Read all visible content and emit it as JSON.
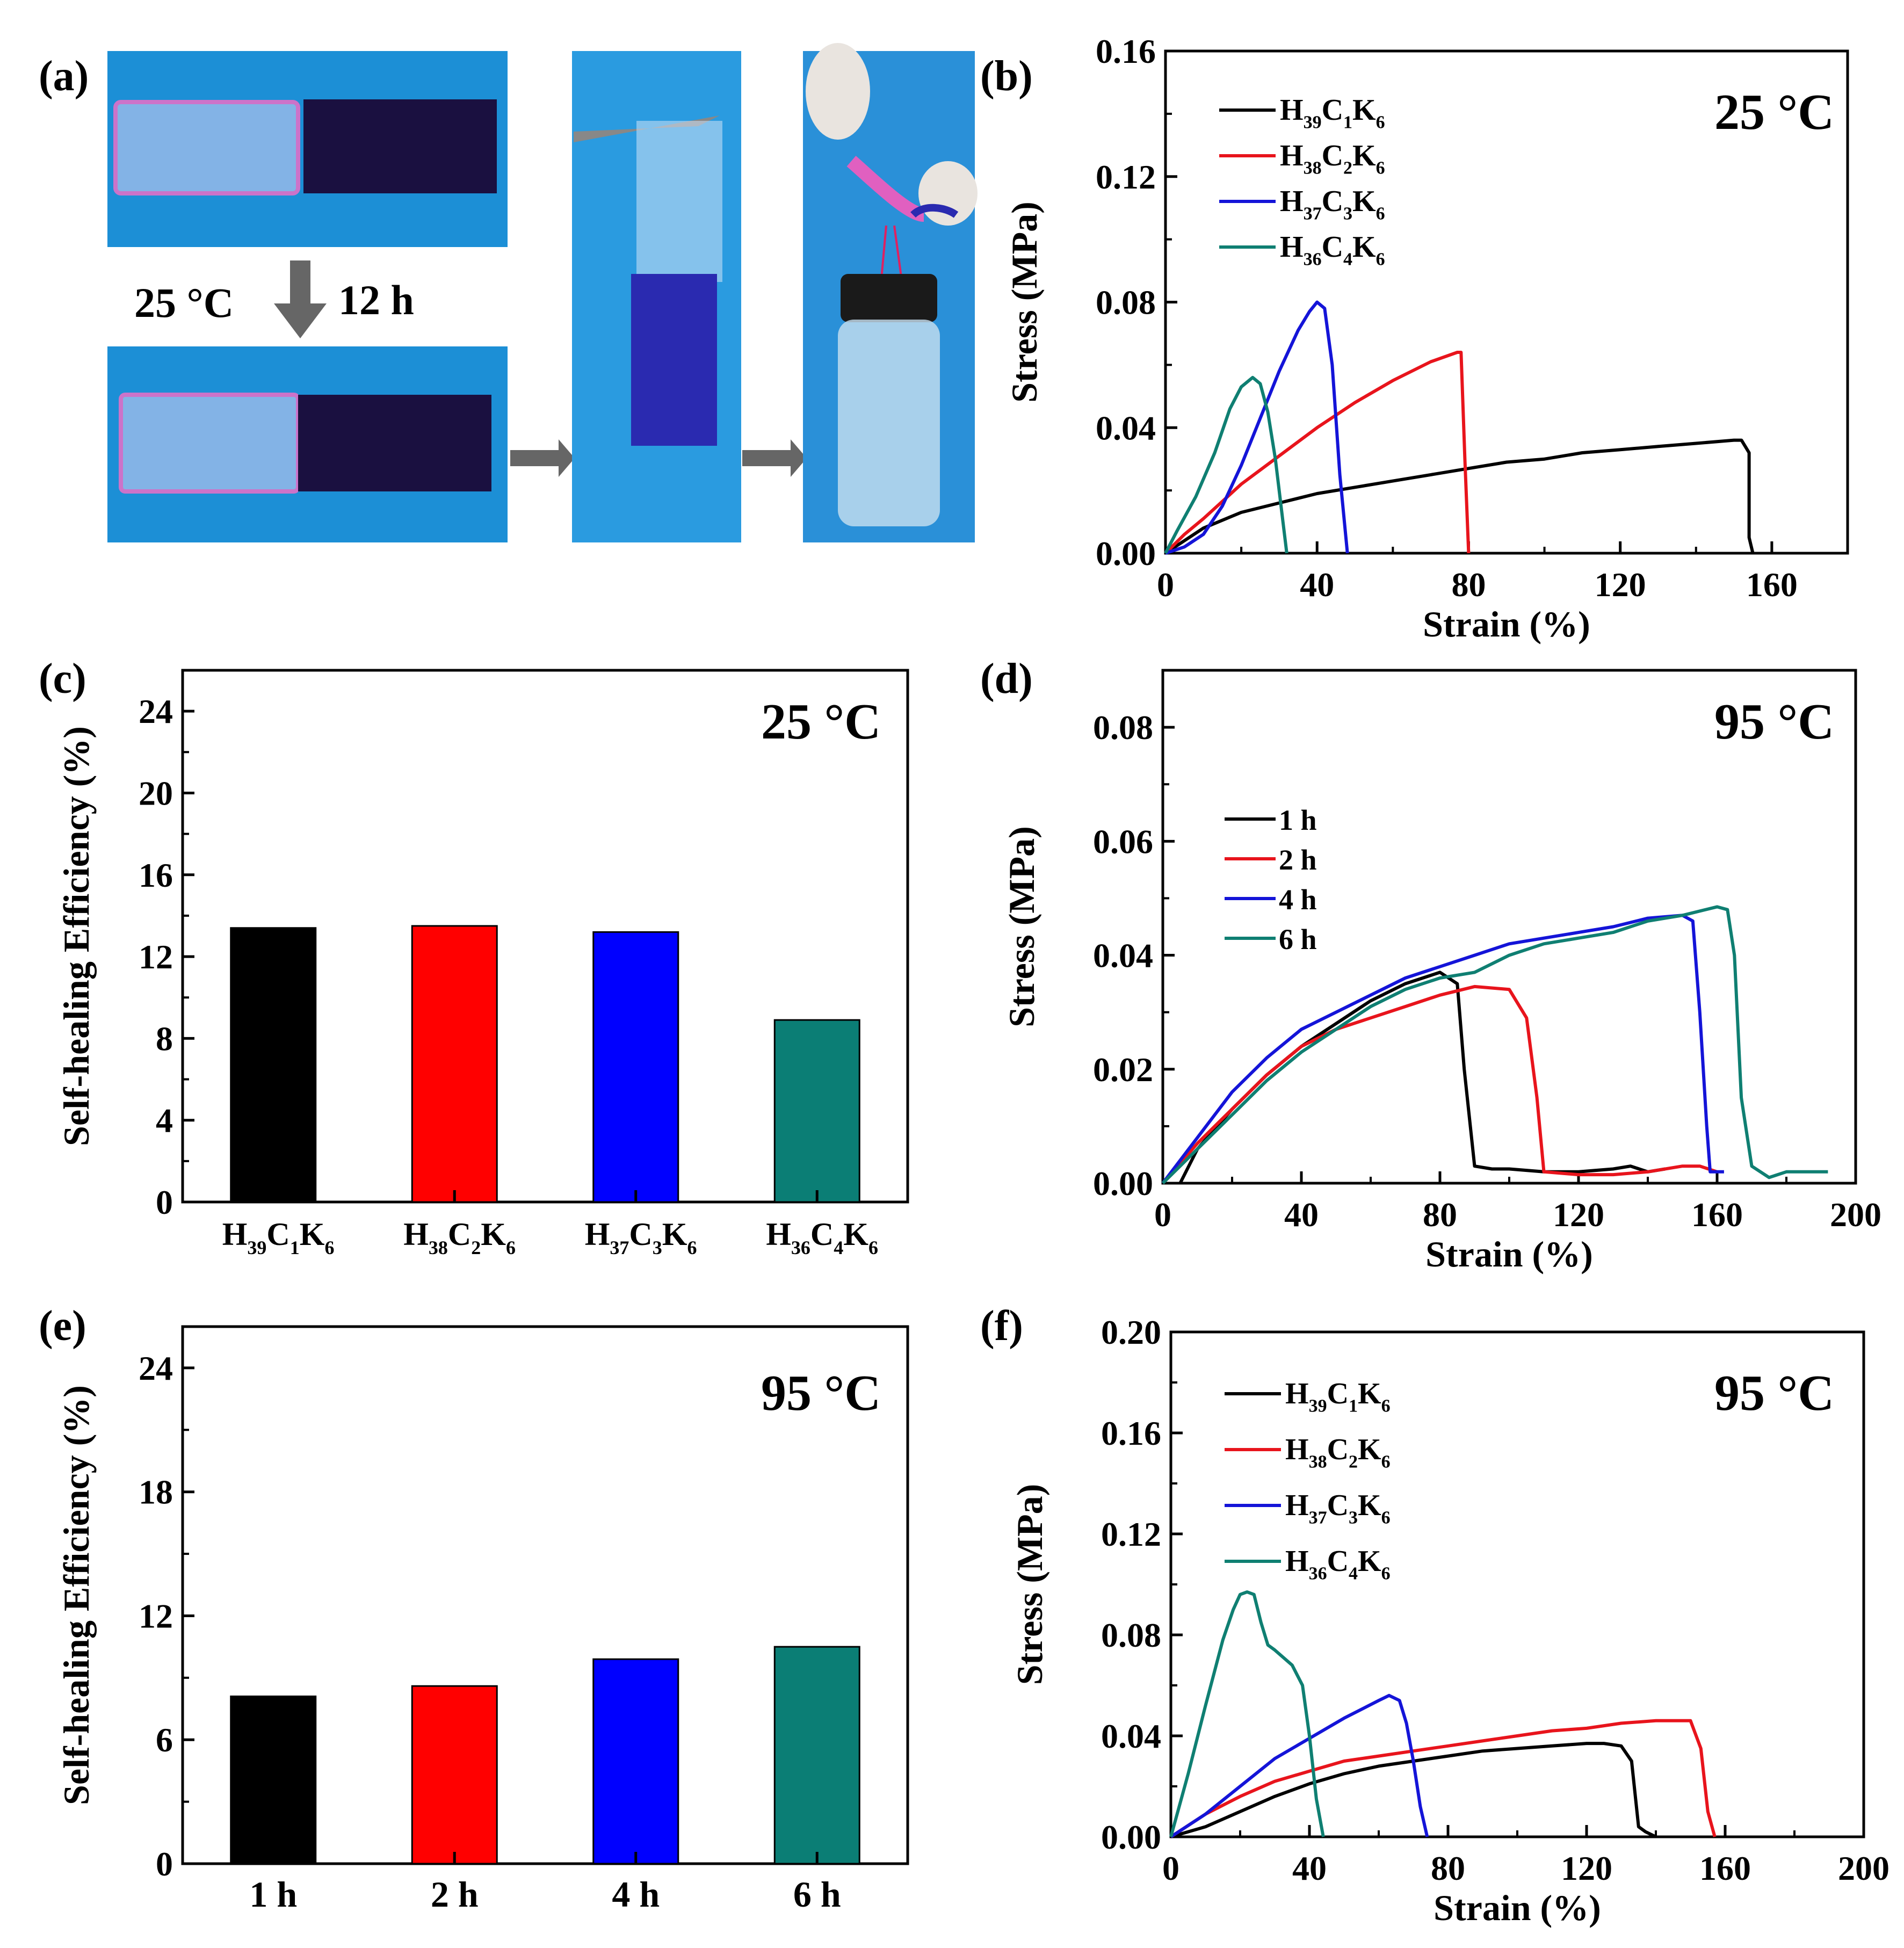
{
  "figure": {
    "panel_labels": [
      "(a)",
      "(b)",
      "(c)",
      "(d)",
      "(e)",
      "(f)"
    ]
  },
  "panel_a": {
    "condition_temp": "25 °C",
    "condition_time": "12 h",
    "colors": {
      "background_blue": "#1c8fd6",
      "gel_pink": "#e070c8",
      "gel_dark": "#1a1040",
      "gel_blue": "#2a2ab0",
      "arrow_gray": "#666666"
    }
  },
  "legend_series": [
    {
      "name": "H39C1K6",
      "base": [
        "H",
        "C",
        "K"
      ],
      "subs": [
        "39",
        "1",
        "6"
      ],
      "color": "#000000"
    },
    {
      "name": "H38C2K6",
      "base": [
        "H",
        "C",
        "K"
      ],
      "subs": [
        "38",
        "2",
        "6"
      ],
      "color": "#e8141c"
    },
    {
      "name": "H37C3K6",
      "base": [
        "H",
        "C",
        "K"
      ],
      "subs": [
        "37",
        "3",
        "6"
      ],
      "color": "#1414d8"
    },
    {
      "name": "H36C4K6",
      "base": [
        "H",
        "C",
        "K"
      ],
      "subs": [
        "36",
        "4",
        "6"
      ],
      "color": "#0f7f72"
    }
  ],
  "chart_data": [
    {
      "id": "b",
      "type": "line",
      "annotation": "25 °C",
      "xlabel": "Strain (%)",
      "ylabel": "Stress (MPa)",
      "xlim": [
        0,
        180
      ],
      "ylim": [
        0,
        0.16
      ],
      "xticks": [
        "0",
        "40",
        "80",
        "120",
        "160"
      ],
      "yticks": [
        "0.00",
        "0.04",
        "0.08",
        "0.12",
        "0.16"
      ],
      "legend_position": "top-left",
      "series": [
        {
          "name": "H39C1K6",
          "color": "#000000",
          "x": [
            0,
            5,
            10,
            20,
            30,
            40,
            50,
            60,
            70,
            80,
            90,
            100,
            110,
            120,
            130,
            140,
            150,
            152,
            154,
            154,
            155
          ],
          "y": [
            0,
            0.004,
            0.008,
            0.013,
            0.016,
            0.019,
            0.021,
            0.023,
            0.025,
            0.027,
            0.029,
            0.03,
            0.032,
            0.033,
            0.034,
            0.035,
            0.036,
            0.036,
            0.032,
            0.005,
            0
          ]
        },
        {
          "name": "H38C2K6",
          "color": "#e8141c",
          "x": [
            0,
            5,
            10,
            20,
            30,
            40,
            50,
            60,
            70,
            77,
            78,
            79,
            80
          ],
          "y": [
            0,
            0.006,
            0.011,
            0.022,
            0.031,
            0.04,
            0.048,
            0.055,
            0.061,
            0.064,
            0.064,
            0.03,
            0
          ]
        },
        {
          "name": "H37C3K6",
          "color": "#1414d8",
          "x": [
            0,
            5,
            10,
            15,
            20,
            25,
            30,
            35,
            38,
            40,
            42,
            44,
            46,
            48
          ],
          "y": [
            0,
            0.002,
            0.006,
            0.015,
            0.028,
            0.043,
            0.058,
            0.071,
            0.077,
            0.08,
            0.078,
            0.06,
            0.025,
            0
          ]
        },
        {
          "name": "H36C4K6",
          "color": "#0f7f72",
          "x": [
            0,
            3,
            8,
            13,
            17,
            20,
            23,
            25,
            27,
            29,
            31,
            32
          ],
          "y": [
            0,
            0.007,
            0.018,
            0.032,
            0.046,
            0.053,
            0.056,
            0.054,
            0.045,
            0.03,
            0.01,
            0
          ]
        }
      ]
    },
    {
      "id": "c",
      "type": "bar",
      "annotation": "25 °C",
      "xlabel": "",
      "ylabel": "Self-healing Efficiency (%)",
      "ylim": [
        0,
        26
      ],
      "yticks": [
        "0",
        "4",
        "8",
        "12",
        "16",
        "20",
        "24"
      ],
      "categories": [
        "H39C1K6",
        "H38C2K6",
        "H37C3K6",
        "H36C4K6"
      ],
      "values": [
        13.4,
        13.5,
        13.2,
        8.9
      ],
      "colors": [
        "#000000",
        "#ff0000",
        "#0000ff",
        "#0b7e75"
      ]
    },
    {
      "id": "d",
      "type": "line",
      "annotation": "95 °C",
      "xlabel": "Strain (%)",
      "ylabel": "Stress (MPa)",
      "xlim": [
        0,
        200
      ],
      "ylim": [
        0,
        0.09
      ],
      "xticks": [
        "0",
        "40",
        "80",
        "120",
        "160",
        "200"
      ],
      "yticks": [
        "0.00",
        "0.02",
        "0.04",
        "0.06",
        "0.08"
      ],
      "legend_position": "left",
      "legend_labels": [
        "1 h",
        "2 h",
        "4 h",
        "6 h"
      ],
      "series": [
        {
          "name": "1 h",
          "color": "#000000",
          "x": [
            5,
            10,
            20,
            30,
            40,
            50,
            60,
            70,
            80,
            85,
            87,
            90,
            95,
            100,
            110,
            120,
            130,
            135,
            140,
            145
          ],
          "y": [
            0,
            0.006,
            0.013,
            0.019,
            0.024,
            0.028,
            0.032,
            0.035,
            0.037,
            0.035,
            0.02,
            0.003,
            0.0025,
            0.0025,
            0.002,
            0.002,
            0.0025,
            0.003,
            0.002,
            0.0025
          ]
        },
        {
          "name": "2 h",
          "color": "#e8141c",
          "x": [
            0,
            10,
            20,
            30,
            40,
            50,
            60,
            70,
            80,
            90,
            100,
            105,
            108,
            110,
            120,
            130,
            140,
            150,
            155,
            160
          ],
          "y": [
            0,
            0.007,
            0.013,
            0.019,
            0.024,
            0.027,
            0.029,
            0.031,
            0.033,
            0.0345,
            0.034,
            0.029,
            0.015,
            0.002,
            0.0015,
            0.0015,
            0.002,
            0.003,
            0.003,
            0.002
          ]
        },
        {
          "name": "4 h",
          "color": "#1414d8",
          "x": [
            0,
            10,
            20,
            30,
            40,
            50,
            60,
            70,
            80,
            90,
            100,
            110,
            120,
            130,
            140,
            150,
            153,
            155,
            157,
            158,
            162
          ],
          "y": [
            0,
            0.008,
            0.016,
            0.022,
            0.027,
            0.03,
            0.033,
            0.036,
            0.038,
            0.04,
            0.042,
            0.043,
            0.044,
            0.045,
            0.0465,
            0.047,
            0.046,
            0.03,
            0.01,
            0.002,
            0.002
          ]
        },
        {
          "name": "6 h",
          "color": "#0f7f72",
          "x": [
            0,
            10,
            20,
            30,
            40,
            50,
            60,
            70,
            80,
            90,
            100,
            110,
            120,
            130,
            140,
            150,
            160,
            163,
            165,
            167,
            170,
            175,
            180,
            185,
            192
          ],
          "y": [
            0,
            0.006,
            0.012,
            0.018,
            0.023,
            0.027,
            0.031,
            0.034,
            0.036,
            0.037,
            0.04,
            0.042,
            0.043,
            0.044,
            0.046,
            0.047,
            0.0485,
            0.048,
            0.04,
            0.015,
            0.003,
            0.001,
            0.002,
            0.002,
            0.002
          ]
        }
      ]
    },
    {
      "id": "e",
      "type": "bar",
      "annotation": "95 °C",
      "xlabel": "",
      "ylabel": "Self-healing Efficiency (%)",
      "ylim": [
        0,
        26
      ],
      "yticks": [
        "0",
        "6",
        "12",
        "18",
        "24"
      ],
      "categories": [
        "1 h",
        "2 h",
        "4 h",
        "6 h"
      ],
      "values": [
        8.1,
        8.6,
        9.9,
        10.5
      ],
      "colors": [
        "#000000",
        "#ff0000",
        "#0000ff",
        "#0b7e75"
      ]
    },
    {
      "id": "f",
      "type": "line",
      "annotation": "95 °C",
      "xlabel": "Strain (%)",
      "ylabel": "Stress (MPa)",
      "xlim": [
        0,
        200
      ],
      "ylim": [
        0,
        0.2
      ],
      "xticks": [
        "0",
        "40",
        "80",
        "120",
        "160",
        "200"
      ],
      "yticks": [
        "0.00",
        "0.04",
        "0.08",
        "0.12",
        "0.16",
        "0.20"
      ],
      "legend_position": "top-left",
      "series": [
        {
          "name": "H39C1K6",
          "color": "#000000",
          "x": [
            0,
            10,
            20,
            30,
            40,
            50,
            60,
            70,
            80,
            90,
            100,
            110,
            120,
            125,
            130,
            133,
            135,
            137,
            140
          ],
          "y": [
            0,
            0.004,
            0.01,
            0.016,
            0.021,
            0.025,
            0.028,
            0.03,
            0.032,
            0.034,
            0.035,
            0.036,
            0.037,
            0.037,
            0.036,
            0.03,
            0.004,
            0.002,
            0
          ]
        },
        {
          "name": "H38C2K6",
          "color": "#e8141c",
          "x": [
            0,
            10,
            20,
            30,
            40,
            50,
            60,
            70,
            80,
            90,
            100,
            110,
            120,
            130,
            140,
            150,
            153,
            155,
            157
          ],
          "y": [
            0,
            0.009,
            0.016,
            0.022,
            0.026,
            0.03,
            0.032,
            0.034,
            0.036,
            0.038,
            0.04,
            0.042,
            0.043,
            0.045,
            0.046,
            0.046,
            0.035,
            0.01,
            0
          ]
        },
        {
          "name": "H37C3K6",
          "color": "#1414d8",
          "x": [
            0,
            10,
            20,
            30,
            40,
            50,
            60,
            63,
            66,
            68,
            70,
            72,
            74
          ],
          "y": [
            0,
            0.009,
            0.02,
            0.031,
            0.039,
            0.047,
            0.054,
            0.056,
            0.054,
            0.045,
            0.03,
            0.012,
            0
          ]
        },
        {
          "name": "H36C4K6",
          "color": "#0f7f72",
          "x": [
            0,
            5,
            10,
            15,
            18,
            20,
            22,
            24,
            26,
            28,
            30,
            35,
            38,
            40,
            42,
            44
          ],
          "y": [
            0,
            0.025,
            0.052,
            0.078,
            0.09,
            0.096,
            0.097,
            0.096,
            0.085,
            0.076,
            0.074,
            0.068,
            0.06,
            0.04,
            0.015,
            0
          ]
        }
      ]
    }
  ]
}
